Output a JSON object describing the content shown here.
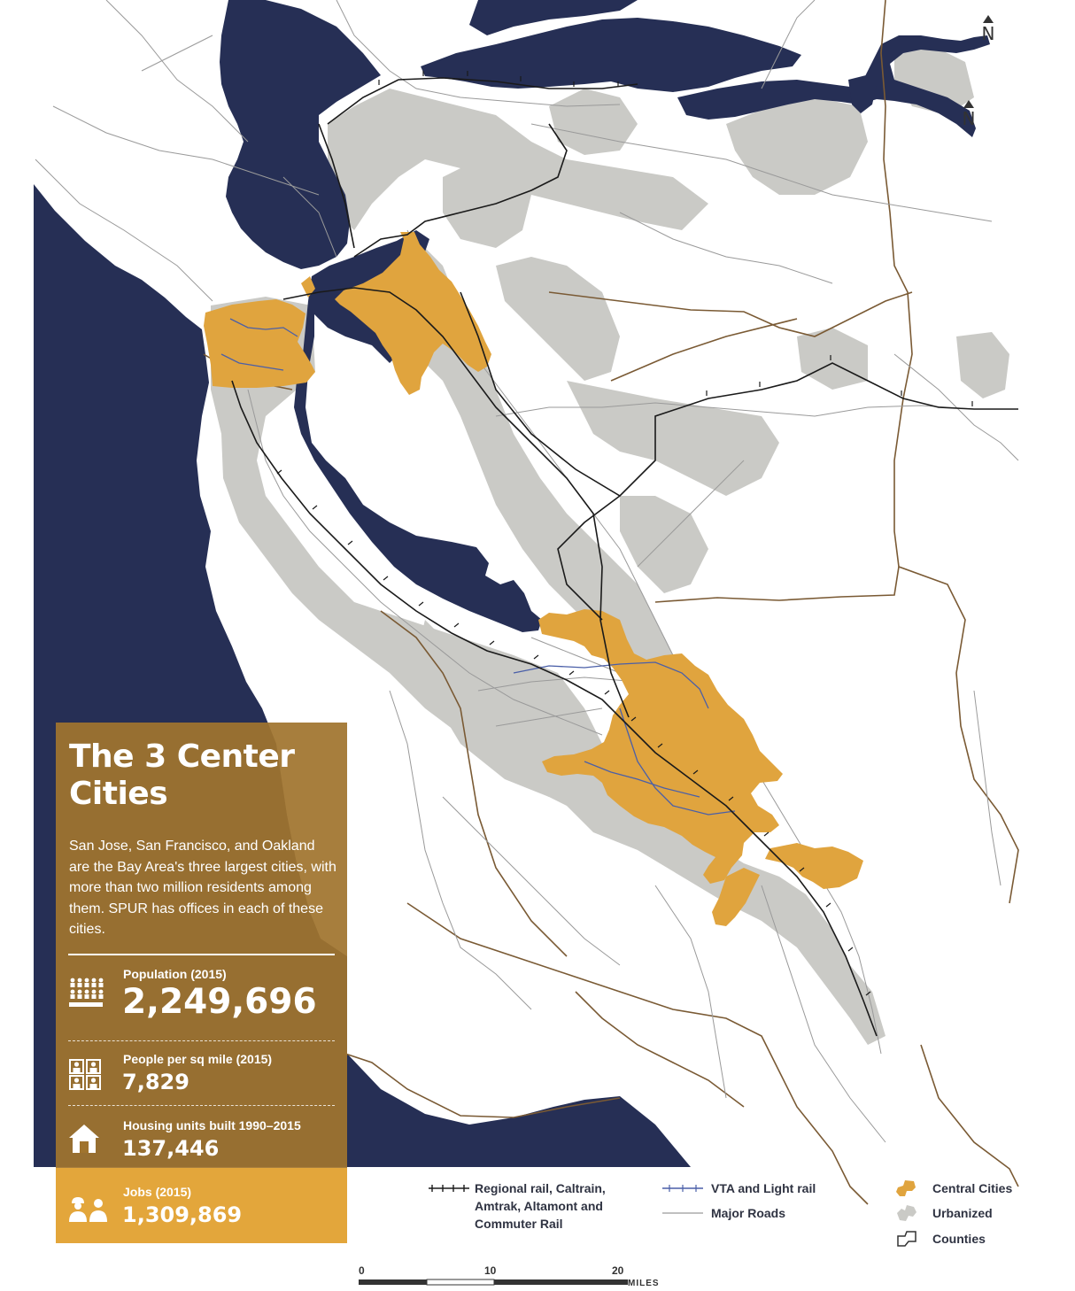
{
  "map": {
    "colors": {
      "water": "#262f55",
      "land": "#ffffff",
      "urbanized": "#cacac6",
      "central_cities": "#e0a43e",
      "rail": "#1a1a1a",
      "light_rail": "#4a5fa8",
      "roads": "#9a9a9a",
      "counties": "#7a5a34"
    },
    "north_label": "N"
  },
  "panel": {
    "title": "The 3 Center Cities",
    "description": "San Jose, San Francisco, and Oakland are the Bay Area's three largest cities, with more than two million residents among them. SPUR has offices in each of these cities.",
    "stats": [
      {
        "label": "Population (2015)",
        "value": "2,249,696",
        "icon": "people-group-icon"
      },
      {
        "label": "People per sq mile (2015)",
        "value": "7,829",
        "icon": "people-grid-icon"
      },
      {
        "label": "Housing units built 1990–2015",
        "value": "137,446",
        "icon": "house-icon"
      },
      {
        "label": "Jobs (2015)",
        "value": "1,309,869",
        "icon": "workers-icon"
      }
    ]
  },
  "legend": {
    "rail": "Regional rail, Caltrain, Amtrak, Altamont and Commuter Rail",
    "rail_lines": [
      "Regional rail, Caltrain,",
      "Amtrak, Altamont and",
      "Commuter Rail"
    ],
    "light_rail": "VTA and Light rail",
    "roads": "Major Roads",
    "central_cities": "Central Cities",
    "urbanized": "Urbanized",
    "counties": "Counties"
  },
  "scale": {
    "ticks": [
      "0",
      "10",
      "20"
    ],
    "unit": "MILES"
  }
}
